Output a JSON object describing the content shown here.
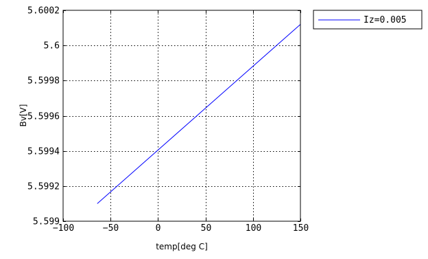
{
  "chart_data": {
    "type": "line",
    "title": "",
    "xlabel": "temp[deg C]",
    "ylabel": "Bv[V]",
    "xlim": [
      -100,
      150
    ],
    "ylim": [
      5.599,
      5.6002
    ],
    "xticks": [
      -100,
      -50,
      0,
      50,
      100,
      150
    ],
    "xtick_labels": [
      "−100",
      "−50",
      "0",
      "50",
      "100",
      "150"
    ],
    "yticks": [
      5.599,
      5.5992,
      5.5994,
      5.5996,
      5.5998,
      5.6,
      5.6002
    ],
    "ytick_labels": [
      "5.599",
      "5.5992",
      "5.5994",
      "5.5996",
      "5.5998",
      "5.6",
      "5.6002"
    ],
    "grid": true,
    "legend_position": "outside-top-right",
    "series": [
      {
        "name": "Iz=0.005",
        "color": "#0000ff",
        "x": [
          -64,
          150
        ],
        "y": [
          5.5991,
          5.60012
        ]
      }
    ]
  }
}
